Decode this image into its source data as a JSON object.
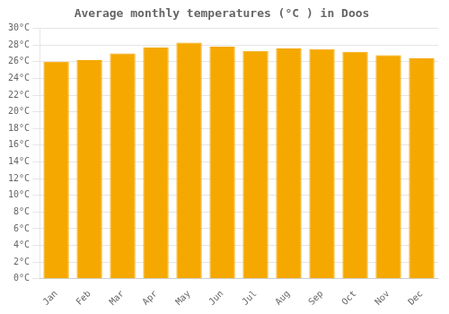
{
  "chart_data": {
    "type": "bar",
    "title": "Average monthly temperatures (°C ) in Doos",
    "categories": [
      "Jan",
      "Feb",
      "Mar",
      "Apr",
      "May",
      "Jun",
      "Jul",
      "Aug",
      "Sep",
      "Oct",
      "Nov",
      "Dec"
    ],
    "values": [
      26.0,
      26.2,
      27.0,
      27.7,
      28.3,
      27.8,
      27.3,
      27.6,
      27.5,
      27.2,
      26.8,
      26.4
    ],
    "color": "#F5A800",
    "ylim": [
      0,
      30
    ],
    "yticks": [
      {
        "value": 0,
        "label": "0°C"
      },
      {
        "value": 2,
        "label": "2°C"
      },
      {
        "value": 4,
        "label": "4°C"
      },
      {
        "value": 6,
        "label": "6°C"
      },
      {
        "value": 8,
        "label": "8°C"
      },
      {
        "value": 10,
        "label": "10°C"
      },
      {
        "value": 12,
        "label": "12°C"
      },
      {
        "value": 14,
        "label": "14°C"
      },
      {
        "value": 16,
        "label": "16°C"
      },
      {
        "value": 18,
        "label": "18°C"
      },
      {
        "value": 20,
        "label": "20°C"
      },
      {
        "value": 22,
        "label": "22°C"
      },
      {
        "value": 24,
        "label": "24°C"
      },
      {
        "value": 26,
        "label": "26°C"
      },
      {
        "value": 28,
        "label": "28°C"
      },
      {
        "value": 30,
        "label": "30°C"
      }
    ],
    "grid": true
  }
}
